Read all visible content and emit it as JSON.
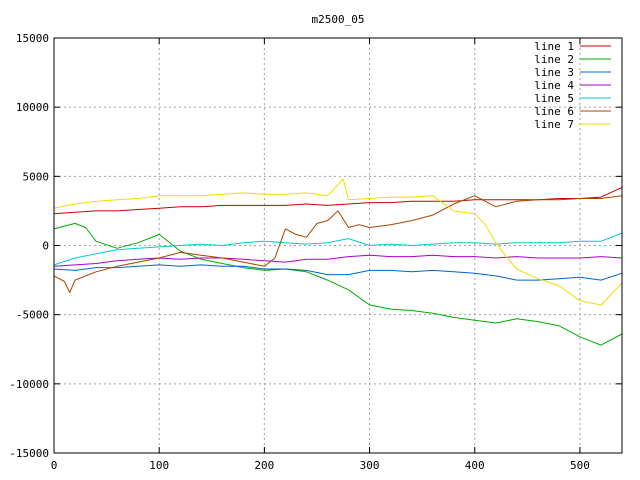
{
  "chart_data": {
    "type": "line",
    "title": "m2500_05",
    "xlabel": "",
    "ylabel": "",
    "xlim": [
      0,
      540
    ],
    "ylim": [
      -15000,
      15000
    ],
    "xticks": [
      0,
      100,
      200,
      300,
      400,
      500
    ],
    "yticks": [
      -15000,
      -10000,
      -5000,
      0,
      5000,
      10000,
      15000
    ],
    "grid": true,
    "legend_position": "top-right",
    "series": [
      {
        "name": "line 1",
        "color": "#cc0000",
        "x": [
          0,
          20,
          40,
          60,
          80,
          100,
          120,
          140,
          160,
          180,
          200,
          220,
          240,
          260,
          280,
          300,
          320,
          340,
          360,
          380,
          400,
          420,
          440,
          460,
          480,
          500,
          520,
          540
        ],
        "y": [
          2300,
          2400,
          2500,
          2500,
          2600,
          2700,
          2800,
          2800,
          2900,
          2900,
          2900,
          2900,
          3000,
          2900,
          3000,
          3100,
          3100,
          3200,
          3200,
          3200,
          3300,
          3300,
          3300,
          3300,
          3400,
          3400,
          3500,
          4200
        ]
      },
      {
        "name": "line 2",
        "color": "#00aa00",
        "x": [
          0,
          20,
          30,
          40,
          60,
          80,
          100,
          120,
          140,
          160,
          180,
          200,
          220,
          240,
          260,
          280,
          300,
          320,
          340,
          360,
          380,
          400,
          420,
          440,
          460,
          480,
          500,
          520,
          540
        ],
        "y": [
          1200,
          1600,
          1300,
          300,
          -200,
          200,
          800,
          -400,
          -1000,
          -1300,
          -1600,
          -1800,
          -1700,
          -1900,
          -2500,
          -3200,
          -4300,
          -4600,
          -4700,
          -4900,
          -5200,
          -5400,
          -5600,
          -5300,
          -5500,
          -5800,
          -6600,
          -7200,
          -6400
        ]
      },
      {
        "name": "line 3",
        "color": "#0066cc",
        "x": [
          0,
          20,
          40,
          60,
          80,
          100,
          120,
          140,
          160,
          180,
          200,
          220,
          240,
          260,
          280,
          300,
          320,
          340,
          360,
          380,
          400,
          420,
          440,
          460,
          480,
          500,
          520,
          540
        ],
        "y": [
          -1700,
          -1800,
          -1600,
          -1600,
          -1500,
          -1400,
          -1500,
          -1400,
          -1500,
          -1500,
          -1700,
          -1700,
          -1800,
          -2100,
          -2100,
          -1800,
          -1800,
          -1900,
          -1800,
          -1900,
          -2000,
          -2200,
          -2500,
          -2500,
          -2400,
          -2300,
          -2500,
          -2000
        ]
      },
      {
        "name": "line 4",
        "color": "#aa00cc",
        "x": [
          0,
          20,
          40,
          60,
          80,
          100,
          120,
          140,
          160,
          180,
          200,
          220,
          240,
          260,
          280,
          300,
          320,
          340,
          360,
          380,
          400,
          420,
          440,
          460,
          480,
          500,
          520,
          540
        ],
        "y": [
          -1500,
          -1400,
          -1300,
          -1100,
          -1000,
          -900,
          -1000,
          -900,
          -900,
          -1000,
          -1100,
          -1200,
          -1000,
          -1000,
          -800,
          -700,
          -800,
          -800,
          -700,
          -800,
          -800,
          -900,
          -800,
          -900,
          -900,
          -900,
          -800,
          -900
        ]
      },
      {
        "name": "line 5",
        "color": "#00cccc",
        "x": [
          0,
          20,
          40,
          60,
          80,
          100,
          120,
          140,
          160,
          180,
          200,
          220,
          240,
          260,
          280,
          300,
          320,
          340,
          360,
          380,
          400,
          420,
          440,
          460,
          480,
          500,
          520,
          540
        ],
        "y": [
          -1400,
          -900,
          -600,
          -300,
          -200,
          -100,
          0,
          100,
          0,
          200,
          300,
          200,
          100,
          200,
          500,
          0,
          100,
          0,
          100,
          200,
          200,
          100,
          200,
          200,
          200,
          300,
          300,
          900
        ]
      },
      {
        "name": "line 6",
        "color": "#aa4400",
        "x": [
          0,
          10,
          15,
          20,
          40,
          60,
          80,
          100,
          120,
          140,
          160,
          180,
          200,
          210,
          220,
          230,
          240,
          250,
          260,
          270,
          280,
          290,
          300,
          320,
          340,
          360,
          380,
          400,
          420,
          440,
          460,
          480,
          500,
          520,
          540
        ],
        "y": [
          -2200,
          -2600,
          -3400,
          -2500,
          -1900,
          -1500,
          -1200,
          -900,
          -500,
          -700,
          -900,
          -1200,
          -1500,
          -900,
          1200,
          800,
          600,
          1600,
          1800,
          2500,
          1300,
          1500,
          1300,
          1500,
          1800,
          2200,
          3000,
          3600,
          2800,
          3200,
          3300,
          3300,
          3400,
          3400,
          3600
        ]
      },
      {
        "name": "line 7",
        "color": "#eedd00",
        "x": [
          0,
          20,
          40,
          60,
          80,
          100,
          120,
          140,
          160,
          180,
          200,
          220,
          240,
          260,
          275,
          280,
          300,
          320,
          340,
          360,
          380,
          400,
          410,
          420,
          430,
          440,
          460,
          480,
          500,
          520,
          540
        ],
        "y": [
          2700,
          3000,
          3200,
          3300,
          3400,
          3600,
          3600,
          3600,
          3700,
          3800,
          3700,
          3700,
          3800,
          3600,
          4800,
          3300,
          3400,
          3500,
          3500,
          3600,
          2500,
          2300,
          1500,
          200,
          -800,
          -1700,
          -2400,
          -2900,
          -4000,
          -4300,
          -2700
        ]
      }
    ]
  }
}
